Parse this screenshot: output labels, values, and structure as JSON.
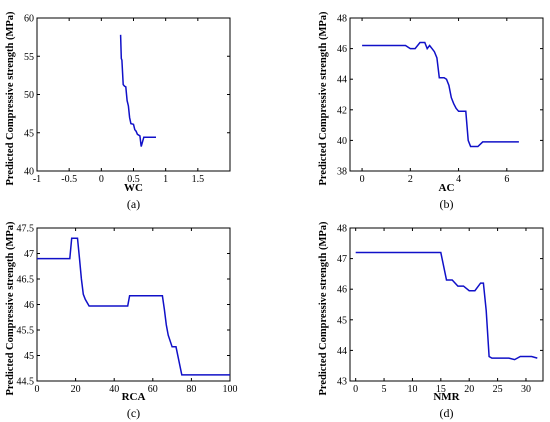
{
  "chart_data": [
    {
      "type": "line",
      "panel": "a",
      "caption": "(a)",
      "xlabel": "WC",
      "ylabel": "Predicted Compressive strength (MPa)",
      "xlim": [
        -1,
        2
      ],
      "ylim": [
        40,
        60
      ],
      "xticks": [
        -1,
        -0.5,
        0,
        0.5,
        1,
        1.5
      ],
      "xtick_labels": [
        "-1",
        "-0.5",
        "0",
        "0.5",
        "1",
        "1.5"
      ],
      "yticks": [
        40,
        45,
        50,
        55,
        60
      ],
      "ytick_labels": [
        "40",
        "45",
        "50",
        "55",
        "60"
      ],
      "x": [
        0.3,
        0.31,
        0.32,
        0.34,
        0.36,
        0.38,
        0.4,
        0.42,
        0.44,
        0.46,
        0.5,
        0.52,
        0.54,
        0.56,
        0.6,
        0.62,
        0.64,
        0.66,
        0.68,
        0.7,
        0.75,
        0.8,
        0.85
      ],
      "y": [
        57.8,
        54.7,
        54.5,
        51.3,
        51.1,
        51.0,
        49.2,
        48.5,
        47.0,
        46.2,
        46.1,
        45.4,
        45.2,
        44.8,
        44.6,
        43.2,
        43.8,
        44.4,
        44.4,
        44.4,
        44.4,
        44.4,
        44.4
      ]
    },
    {
      "type": "line",
      "panel": "b",
      "caption": "(b)",
      "xlabel": "AC",
      "ylabel": "Predicted Compressive strength (MPa)",
      "xlim": [
        -0.5,
        7.5
      ],
      "ylim": [
        38,
        48
      ],
      "xticks": [
        0,
        2,
        4,
        6
      ],
      "xtick_labels": [
        "0",
        "2",
        "4",
        "6"
      ],
      "yticks": [
        38,
        40,
        42,
        44,
        46,
        48
      ],
      "ytick_labels": [
        "38",
        "40",
        "42",
        "44",
        "46",
        "48"
      ],
      "x": [
        0,
        0.5,
        1.0,
        1.5,
        1.8,
        2.0,
        2.2,
        2.4,
        2.6,
        2.7,
        2.8,
        2.9,
        3.0,
        3.1,
        3.2,
        3.4,
        3.5,
        3.6,
        3.7,
        3.8,
        3.9,
        4.0,
        4.1,
        4.2,
        4.3,
        4.4,
        4.5,
        4.8,
        5.0,
        5.5,
        6.0,
        6.5
      ],
      "y": [
        46.2,
        46.2,
        46.2,
        46.2,
        46.2,
        46.0,
        46.0,
        46.4,
        46.4,
        46.0,
        46.2,
        46.0,
        45.8,
        45.4,
        44.1,
        44.1,
        44.0,
        43.6,
        42.8,
        42.4,
        42.1,
        41.9,
        41.9,
        41.9,
        41.9,
        40.0,
        39.6,
        39.6,
        39.9,
        39.9,
        39.9,
        39.9
      ]
    },
    {
      "type": "line",
      "panel": "c",
      "caption": "(c)",
      "xlabel": "RCA",
      "ylabel": "Predicted Compressive strength (MPa)",
      "xlim": [
        0,
        100
      ],
      "ylim": [
        44.5,
        47.5
      ],
      "xticks": [
        0,
        20,
        40,
        60,
        80,
        100
      ],
      "xtick_labels": [
        "0",
        "20",
        "40",
        "60",
        "80",
        "100"
      ],
      "yticks": [
        44.5,
        45,
        45.5,
        46,
        46.5,
        47,
        47.5
      ],
      "ytick_labels": [
        "44.5",
        "45",
        "45.5",
        "46",
        "46.5",
        "47",
        "47.5"
      ],
      "x": [
        0,
        10,
        17,
        18,
        19,
        20,
        21,
        22,
        23,
        24,
        25,
        27,
        30,
        35,
        40,
        45,
        47,
        48,
        50,
        55,
        60,
        65,
        66,
        67,
        68,
        70,
        72,
        75,
        80,
        90,
        100
      ],
      "y": [
        46.9,
        46.9,
        46.9,
        47.3,
        47.3,
        47.3,
        47.3,
        46.9,
        46.5,
        46.2,
        46.1,
        45.97,
        45.97,
        45.97,
        45.97,
        45.97,
        45.97,
        46.17,
        46.17,
        46.17,
        46.17,
        46.17,
        45.9,
        45.6,
        45.4,
        45.17,
        45.17,
        44.62,
        44.62,
        44.62,
        44.62
      ]
    },
    {
      "type": "line",
      "panel": "d",
      "caption": "(d)",
      "xlabel": "NMR",
      "ylabel": "Predicted Compressive strength (MPa)",
      "xlim": [
        -1,
        33
      ],
      "ylim": [
        43,
        48
      ],
      "xticks": [
        0,
        5,
        10,
        15,
        20,
        25,
        30
      ],
      "xtick_labels": [
        "0",
        "5",
        "10",
        "15",
        "20",
        "25",
        "30"
      ],
      "yticks": [
        43,
        44,
        45,
        46,
        47,
        48
      ],
      "ytick_labels": [
        "43",
        "44",
        "45",
        "46",
        "47",
        "48"
      ],
      "x": [
        0,
        5,
        10,
        15,
        16,
        17,
        18,
        19,
        20,
        21,
        22,
        22.5,
        23,
        23.5,
        24,
        25,
        26,
        27,
        28,
        29,
        30,
        31,
        32
      ],
      "y": [
        47.2,
        47.2,
        47.2,
        47.2,
        46.3,
        46.3,
        46.1,
        46.1,
        45.95,
        45.95,
        46.2,
        46.2,
        45.3,
        43.8,
        43.75,
        43.75,
        43.75,
        43.75,
        43.7,
        43.8,
        43.8,
        43.8,
        43.75
      ]
    }
  ]
}
